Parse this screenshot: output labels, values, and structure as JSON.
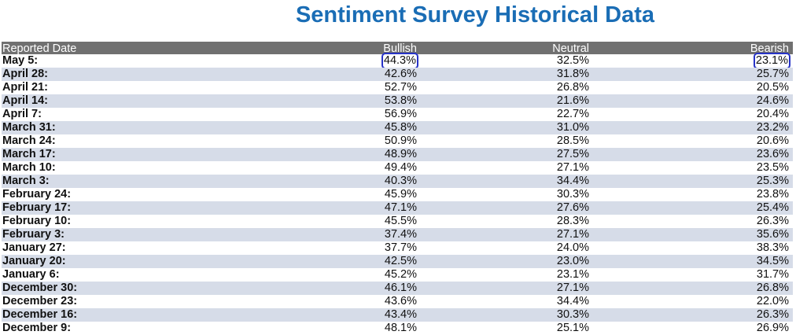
{
  "title": "Sentiment Survey Historical Data",
  "columns": {
    "date": "Reported Date",
    "bullish": "Bullish",
    "neutral": "Neutral",
    "bearish": "Bearish"
  },
  "rows": [
    {
      "date": "May 5:",
      "bullish": "44.3%",
      "neutral": "32.5%",
      "bearish": "23.1%"
    },
    {
      "date": "April 28:",
      "bullish": "42.6%",
      "neutral": "31.8%",
      "bearish": "25.7%"
    },
    {
      "date": "April 21:",
      "bullish": "52.7%",
      "neutral": "26.8%",
      "bearish": "20.5%"
    },
    {
      "date": "April 14:",
      "bullish": "53.8%",
      "neutral": "21.6%",
      "bearish": "24.6%"
    },
    {
      "date": "April 7:",
      "bullish": "56.9%",
      "neutral": "22.7%",
      "bearish": "20.4%"
    },
    {
      "date": "March 31:",
      "bullish": "45.8%",
      "neutral": "31.0%",
      "bearish": "23.2%"
    },
    {
      "date": "March 24:",
      "bullish": "50.9%",
      "neutral": "28.5%",
      "bearish": "20.6%"
    },
    {
      "date": "March 17:",
      "bullish": "48.9%",
      "neutral": "27.5%",
      "bearish": "23.6%"
    },
    {
      "date": "March 10:",
      "bullish": "49.4%",
      "neutral": "27.1%",
      "bearish": "23.5%"
    },
    {
      "date": "March 3:",
      "bullish": "40.3%",
      "neutral": "34.4%",
      "bearish": "25.3%"
    },
    {
      "date": "February 24:",
      "bullish": "45.9%",
      "neutral": "30.3%",
      "bearish": "23.8%"
    },
    {
      "date": "February 17:",
      "bullish": "47.1%",
      "neutral": "27.6%",
      "bearish": "25.4%"
    },
    {
      "date": "February 10:",
      "bullish": "45.5%",
      "neutral": "28.3%",
      "bearish": "26.3%"
    },
    {
      "date": "February 3:",
      "bullish": "37.4%",
      "neutral": "27.1%",
      "bearish": "35.6%"
    },
    {
      "date": "January 27:",
      "bullish": "37.7%",
      "neutral": "24.0%",
      "bearish": "38.3%"
    },
    {
      "date": "January 20:",
      "bullish": "42.5%",
      "neutral": "23.0%",
      "bearish": "34.5%"
    },
    {
      "date": "January 6:",
      "bullish": "45.2%",
      "neutral": "23.1%",
      "bearish": "31.7%"
    },
    {
      "date": "December 30:",
      "bullish": "46.1%",
      "neutral": "27.1%",
      "bearish": "26.8%"
    },
    {
      "date": "December 23:",
      "bullish": "43.6%",
      "neutral": "34.4%",
      "bearish": "22.0%"
    },
    {
      "date": "December 16:",
      "bullish": "43.4%",
      "neutral": "30.3%",
      "bearish": "26.3%"
    },
    {
      "date": "December 9:",
      "bullish": "48.1%",
      "neutral": "25.1%",
      "bearish": "26.9%"
    }
  ],
  "highlighted_cells": [
    "rows.0.bullish",
    "rows.0.bearish"
  ],
  "colors": {
    "title": "#1a6db5",
    "header_bg": "#707070",
    "stripe_bg": "#d6dce8",
    "highlight_box": "#2733c7"
  }
}
